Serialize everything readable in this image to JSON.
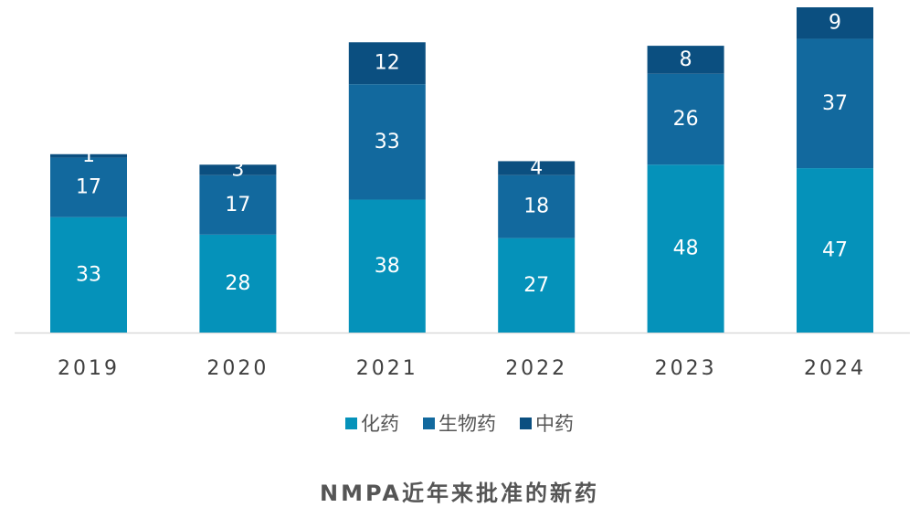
{
  "chart_data": {
    "type": "bar",
    "stacked": true,
    "title": "NMPA近年来批准的新药",
    "xlabel": "",
    "ylabel": "",
    "categories": [
      "2019",
      "2020",
      "2021",
      "2022",
      "2023",
      "2024"
    ],
    "series": [
      {
        "name": "化药",
        "color": "#0592BA",
        "values": [
          33,
          28,
          38,
          27,
          48,
          47
        ]
      },
      {
        "name": "生物药",
        "color": "#12699E",
        "values": [
          17,
          17,
          33,
          18,
          26,
          37
        ]
      },
      {
        "name": "中药",
        "color": "#0B4F80",
        "values": [
          1,
          3,
          12,
          4,
          8,
          9
        ]
      }
    ],
    "ylim": [
      0,
      93
    ],
    "grid": false,
    "legend_position": "bottom"
  }
}
